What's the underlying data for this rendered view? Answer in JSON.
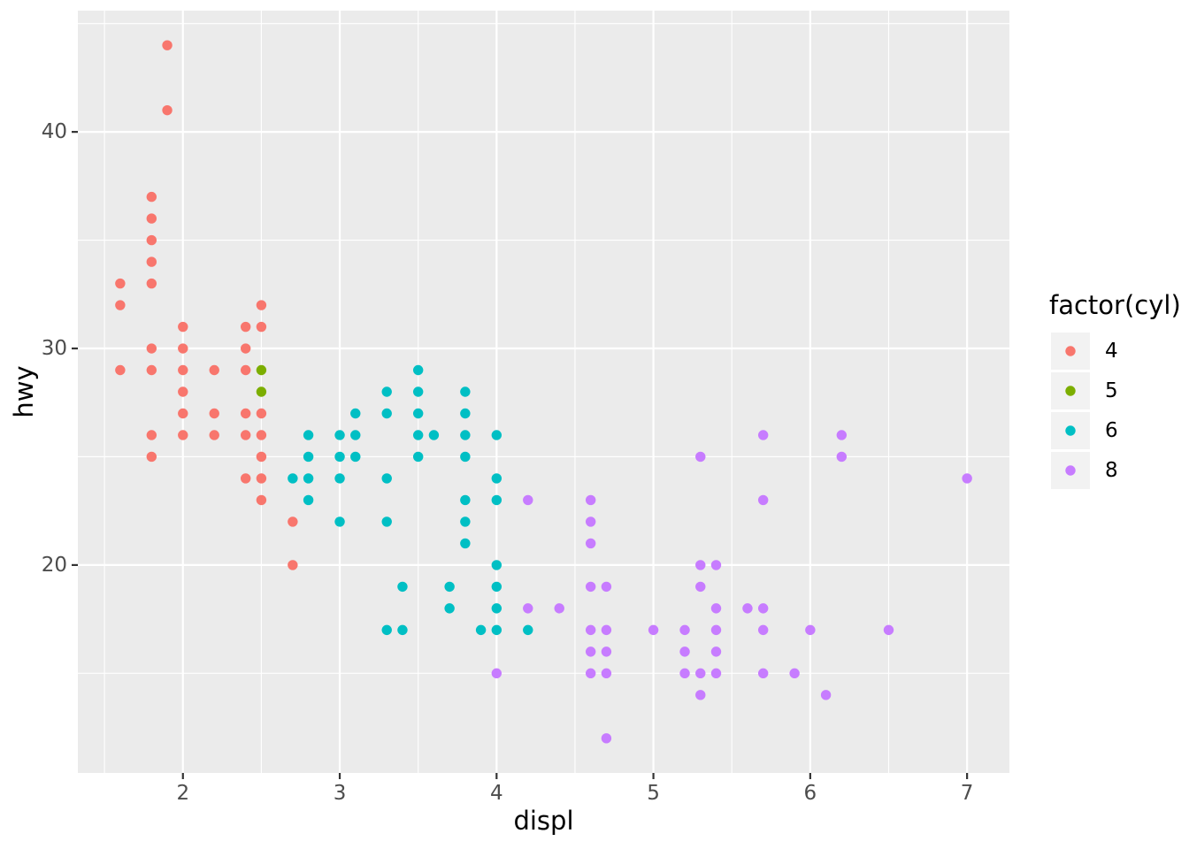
{
  "chart_data": {
    "type": "scatter",
    "title": "",
    "xlabel": "displ",
    "ylabel": "hwy",
    "x_domain": [
      1.33,
      7.27
    ],
    "y_domain": [
      10.4,
      45.6
    ],
    "x_ticks": {
      "major": [
        2,
        3,
        4,
        5,
        6,
        7
      ],
      "labels": [
        "2",
        "3",
        "4",
        "5",
        "6",
        "7"
      ],
      "minor": [
        1.5,
        2.5,
        3.5,
        4.5,
        5.5,
        6.5
      ]
    },
    "y_ticks": {
      "major": [
        20,
        30,
        40
      ],
      "labels": [
        "20",
        "30",
        "40"
      ],
      "minor": [
        15,
        25,
        35,
        45
      ]
    },
    "grid": "on",
    "legend": {
      "title": "factor(cyl)",
      "position": "right"
    },
    "series": [
      {
        "name": "4",
        "color": "#F8766D",
        "points": [
          [
            1.6,
            29
          ],
          [
            1.6,
            32
          ],
          [
            1.6,
            33
          ],
          [
            1.8,
            25
          ],
          [
            1.8,
            26
          ],
          [
            1.8,
            29
          ],
          [
            1.8,
            30
          ],
          [
            1.8,
            33
          ],
          [
            1.8,
            34
          ],
          [
            1.8,
            35
          ],
          [
            1.8,
            36
          ],
          [
            1.8,
            37
          ],
          [
            1.9,
            41
          ],
          [
            1.9,
            44
          ],
          [
            2.0,
            26
          ],
          [
            2.0,
            27
          ],
          [
            2.0,
            28
          ],
          [
            2.0,
            29
          ],
          [
            2.0,
            30
          ],
          [
            2.0,
            31
          ],
          [
            2.2,
            26
          ],
          [
            2.2,
            27
          ],
          [
            2.2,
            29
          ],
          [
            2.4,
            24
          ],
          [
            2.4,
            26
          ],
          [
            2.4,
            27
          ],
          [
            2.4,
            29
          ],
          [
            2.4,
            30
          ],
          [
            2.4,
            31
          ],
          [
            2.5,
            23
          ],
          [
            2.5,
            24
          ],
          [
            2.5,
            25
          ],
          [
            2.5,
            26
          ],
          [
            2.5,
            27
          ],
          [
            2.5,
            31
          ],
          [
            2.5,
            32
          ],
          [
            2.7,
            20
          ],
          [
            2.7,
            22
          ]
        ]
      },
      {
        "name": "5",
        "color": "#7CAE00",
        "points": [
          [
            2.5,
            28
          ],
          [
            2.5,
            29
          ]
        ]
      },
      {
        "name": "6",
        "color": "#00BFC4",
        "points": [
          [
            2.7,
            24
          ],
          [
            2.8,
            23
          ],
          [
            2.8,
            24
          ],
          [
            2.8,
            25
          ],
          [
            2.8,
            26
          ],
          [
            3.0,
            22
          ],
          [
            3.0,
            24
          ],
          [
            3.0,
            25
          ],
          [
            3.0,
            26
          ],
          [
            3.1,
            25
          ],
          [
            3.1,
            26
          ],
          [
            3.1,
            27
          ],
          [
            3.3,
            17
          ],
          [
            3.3,
            22
          ],
          [
            3.3,
            24
          ],
          [
            3.3,
            27
          ],
          [
            3.3,
            28
          ],
          [
            3.4,
            17
          ],
          [
            3.4,
            19
          ],
          [
            3.5,
            25
          ],
          [
            3.5,
            26
          ],
          [
            3.5,
            27
          ],
          [
            3.5,
            28
          ],
          [
            3.5,
            29
          ],
          [
            3.6,
            26
          ],
          [
            3.7,
            18
          ],
          [
            3.7,
            19
          ],
          [
            3.8,
            21
          ],
          [
            3.8,
            22
          ],
          [
            3.8,
            23
          ],
          [
            3.8,
            25
          ],
          [
            3.8,
            26
          ],
          [
            3.8,
            27
          ],
          [
            3.8,
            28
          ],
          [
            3.9,
            17
          ],
          [
            4.0,
            17
          ],
          [
            4.0,
            18
          ],
          [
            4.0,
            19
          ],
          [
            4.0,
            20
          ],
          [
            4.0,
            23
          ],
          [
            4.0,
            24
          ],
          [
            4.0,
            26
          ],
          [
            4.2,
            17
          ]
        ]
      },
      {
        "name": "8",
        "color": "#C77CFF",
        "points": [
          [
            4.0,
            15
          ],
          [
            4.2,
            18
          ],
          [
            4.2,
            23
          ],
          [
            4.4,
            18
          ],
          [
            4.6,
            15
          ],
          [
            4.6,
            16
          ],
          [
            4.6,
            17
          ],
          [
            4.6,
            19
          ],
          [
            4.6,
            21
          ],
          [
            4.6,
            22
          ],
          [
            4.6,
            23
          ],
          [
            4.7,
            12
          ],
          [
            4.7,
            15
          ],
          [
            4.7,
            16
          ],
          [
            4.7,
            17
          ],
          [
            4.7,
            19
          ],
          [
            5.0,
            17
          ],
          [
            5.2,
            15
          ],
          [
            5.2,
            16
          ],
          [
            5.2,
            17
          ],
          [
            5.3,
            14
          ],
          [
            5.3,
            15
          ],
          [
            5.3,
            19
          ],
          [
            5.3,
            20
          ],
          [
            5.3,
            25
          ],
          [
            5.4,
            15
          ],
          [
            5.4,
            16
          ],
          [
            5.4,
            17
          ],
          [
            5.4,
            18
          ],
          [
            5.4,
            20
          ],
          [
            5.6,
            18
          ],
          [
            5.7,
            15
          ],
          [
            5.7,
            17
          ],
          [
            5.7,
            18
          ],
          [
            5.7,
            23
          ],
          [
            5.7,
            26
          ],
          [
            5.9,
            15
          ],
          [
            6.0,
            17
          ],
          [
            6.1,
            14
          ],
          [
            6.2,
            25
          ],
          [
            6.2,
            26
          ],
          [
            6.5,
            17
          ],
          [
            7.0,
            24
          ]
        ]
      }
    ]
  },
  "style": {
    "panel_bg": "#EBEBEB",
    "grid_color": "#FFFFFF",
    "tick_mark_color": "#333333",
    "tick_label_color": "#4D4D4D",
    "title_color": "#000000",
    "legend_key_bg": "#F2F2F2",
    "point_radius": 5.7
  }
}
